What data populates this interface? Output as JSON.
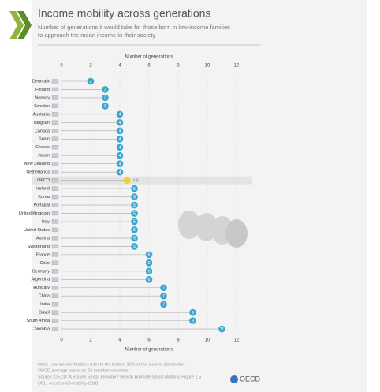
{
  "chart_data": {
    "type": "dot",
    "title": "Income mobility across generations",
    "subtitle": [
      "Number of generations it would take for those born in low-income families",
      "to approach the mean income in their society"
    ],
    "xlabel": "Number of generations",
    "categories": [
      "Denmark",
      "Finland",
      "Norway",
      "Sweden",
      "Australia",
      "Belgium",
      "Canada",
      "Spain",
      "Greece",
      "Japan",
      "New Zealand",
      "Netherlands",
      "OECD",
      "Ireland",
      "Korea",
      "Portugal",
      "United Kingdom",
      "Italy",
      "United States",
      "Austria",
      "Switzerland",
      "France",
      "Chile",
      "Germany",
      "Argentina",
      "Hungary",
      "China",
      "India",
      "Brazil",
      "South Africa",
      "Colombia"
    ],
    "values": [
      2,
      3,
      3,
      3,
      4,
      4,
      4,
      4,
      4,
      4,
      4,
      4,
      4.5,
      5,
      5,
      5,
      5,
      5,
      5,
      5,
      5,
      6,
      6,
      6,
      6,
      7,
      7,
      7,
      9,
      9,
      11
    ],
    "color": "#3aa6cf",
    "colors": [
      "#3aa6cf",
      "#3aa6cf",
      "#3aa6cf",
      "#3aa6cf",
      "#3aa6cf",
      "#3aa6cf",
      "#3aa6cf",
      "#3aa6cf",
      "#3aa6cf",
      "#3aa6cf",
      "#3aa6cf",
      "#3aa6cf",
      "#f2d024",
      "#3aa6cf",
      "#3aa6cf",
      "#3aa6cf",
      "#3aa6cf",
      "#3aa6cf",
      "#3aa6cf",
      "#3aa6cf",
      "#3aa6cf",
      "#3aa6cf",
      "#3aa6cf",
      "#3aa6cf",
      "#3aa6cf",
      "#3aa6cf",
      "#3aa6cf",
      "#3aa6cf",
      "#3aa6cf",
      "#3aa6cf",
      "#3aa6cf"
    ],
    "xlim": [
      0,
      12
    ],
    "xticks": [
      0,
      2,
      4,
      6,
      8,
      10,
      12
    ],
    "grid": true,
    "notes": [
      "Note: Low-income families refer to the bottom 10% of the income distribution.",
      "OECD average based on 24 member countries.",
      "Source: OECD: A Broken Social Elevator? How to promote Social Mobility, Figure 1.5",
      "URL: oecd/social-mobility-2018"
    ],
    "logo": "OECD"
  }
}
